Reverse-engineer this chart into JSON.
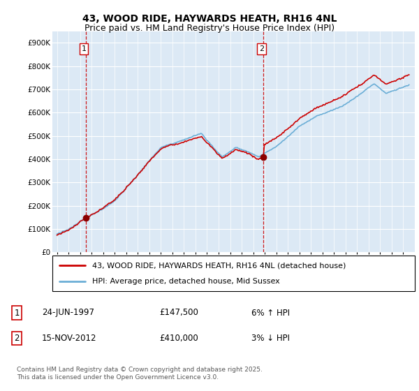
{
  "title": "43, WOOD RIDE, HAYWARDS HEATH, RH16 4NL",
  "subtitle": "Price paid vs. HM Land Registry's House Price Index (HPI)",
  "ylim": [
    0,
    950000
  ],
  "yticks": [
    0,
    100000,
    200000,
    300000,
    400000,
    500000,
    600000,
    700000,
    800000,
    900000
  ],
  "ytick_labels": [
    "£0",
    "£100K",
    "£200K",
    "£300K",
    "£400K",
    "£500K",
    "£600K",
    "£700K",
    "£800K",
    "£900K"
  ],
  "bg_color": "#dce9f5",
  "grid_color": "#ffffff",
  "line_color_hpi": "#6baed6",
  "line_color_price": "#cc0000",
  "marker_color": "#8b0000",
  "vline_color": "#cc0000",
  "sale1_year": 1997.48,
  "sale1_price": 147500,
  "sale2_year": 2012.88,
  "sale2_price": 410000,
  "legend_label1": "43, WOOD RIDE, HAYWARDS HEATH, RH16 4NL (detached house)",
  "legend_label2": "HPI: Average price, detached house, Mid Sussex",
  "footnote": "Contains HM Land Registry data © Crown copyright and database right 2025.\nThis data is licensed under the Open Government Licence v3.0.",
  "title_fontsize": 10,
  "subtitle_fontsize": 9,
  "tick_fontsize": 7.5,
  "legend_fontsize": 8,
  "annot_fontsize": 8.5
}
